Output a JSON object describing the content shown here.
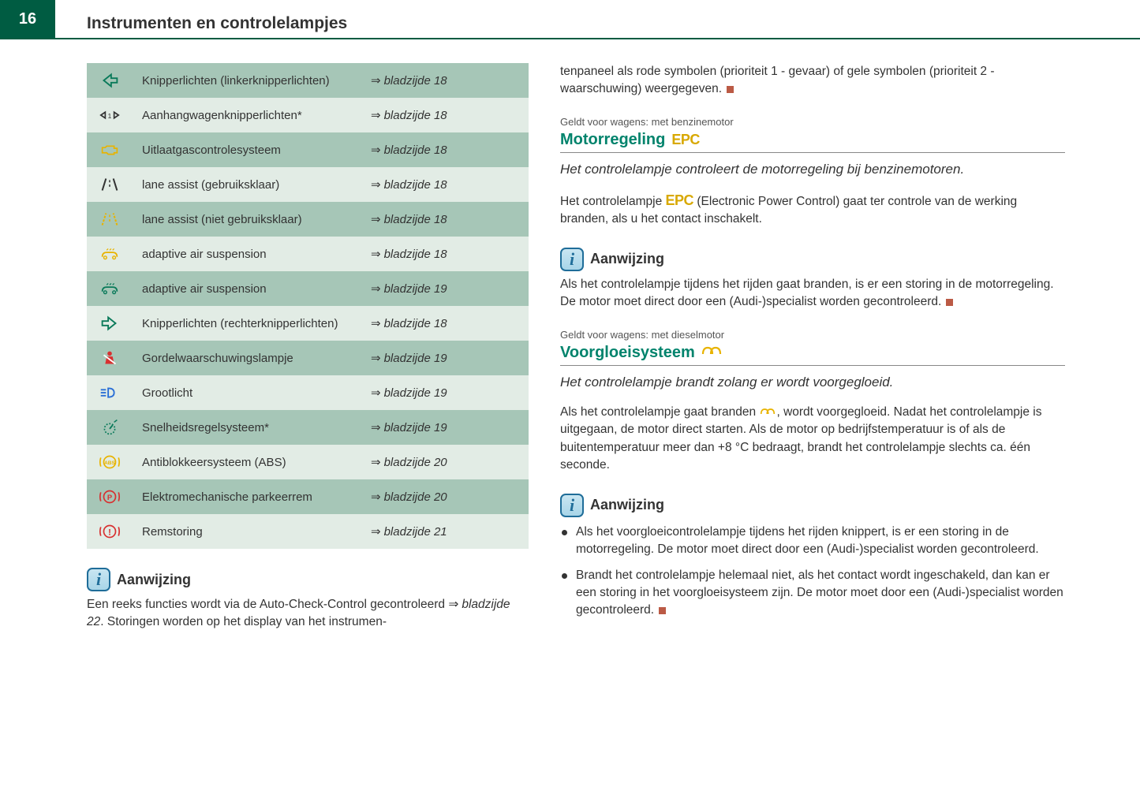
{
  "page": {
    "number": "16",
    "title": "Instrumenten en controlelampjes"
  },
  "colors": {
    "header_green": "#005c42",
    "section_title": "#00836c",
    "row_dark": "#a6c6b7",
    "row_light": "#e2ece5",
    "epc_yellow": "#d8a800",
    "icon_green": "#0a7a5a",
    "icon_yellow": "#e8b300",
    "icon_red": "#d83030",
    "icon_blue": "#2a6fd6",
    "end_square": "#bb5a45"
  },
  "table": {
    "rows": [
      {
        "icon": "turn-left",
        "color": "#0a7a5a",
        "desc": "Knipperlichten (linkerknipperlichten)",
        "ref": "bladzijde 18"
      },
      {
        "icon": "trailer",
        "color": "#333333",
        "desc": "Aanhangwagenknipperlichten*",
        "ref": "bladzijde 18"
      },
      {
        "icon": "engine",
        "color": "#e8b300",
        "desc": "Uitlaatgascontrolesysteem",
        "ref": "bladzijde 18"
      },
      {
        "icon": "lane-on",
        "color": "#333333",
        "desc": "lane assist (gebruiksklaar)",
        "ref": "bladzijde 18"
      },
      {
        "icon": "lane-off",
        "color": "#e8b300",
        "desc": "lane assist (niet gebruiksklaar)",
        "ref": "bladzijde 18"
      },
      {
        "icon": "air-susp-y",
        "color": "#e8b300",
        "desc": "adaptive air suspension",
        "ref": "bladzijde 18"
      },
      {
        "icon": "air-susp-g",
        "color": "#0a7a5a",
        "desc": "adaptive air suspension",
        "ref": "bladzijde 19"
      },
      {
        "icon": "turn-right",
        "color": "#0a7a5a",
        "desc": "Knipperlichten (rechterknipperlichten)",
        "ref": "bladzijde 18"
      },
      {
        "icon": "seatbelt",
        "color": "#d83030",
        "desc": "Gordelwaarschuwingslampje",
        "ref": "bladzijde 19"
      },
      {
        "icon": "highbeam",
        "color": "#2a6fd6",
        "desc": "Grootlicht",
        "ref": "bladzijde 19"
      },
      {
        "icon": "cruise",
        "color": "#0a7a5a",
        "desc": "Snelheidsregelsysteem*",
        "ref": "bladzijde 19"
      },
      {
        "icon": "abs",
        "color": "#e8b300",
        "desc": "Antiblokkeersysteem (ABS)",
        "ref": "bladzijde 20"
      },
      {
        "icon": "parkbrake",
        "color": "#d83030",
        "desc": "Elektromechanische parkeerrem",
        "ref": "bladzijde 20"
      },
      {
        "icon": "brakefault",
        "color": "#d83030",
        "desc": "Remstoring",
        "ref": "bladzijde 21"
      }
    ]
  },
  "left_note": {
    "heading": "Aanwijzing",
    "text_a": "Een reeks functies wordt via de Auto-Check-Control gecontroleerd ",
    "page_ref": "bladzijde 22",
    "text_b": ". Storingen worden op het display van het instrumen-"
  },
  "right": {
    "continuation": "tenpaneel als rode symbolen (prioriteit 1 - gevaar) of gele symbolen (prioriteit 2 - waarschuwing) weergegeven.",
    "section1": {
      "prefix": "Geldt voor wagens: met benzinemotor",
      "title": "Motorregeling",
      "badge": "EPC",
      "subtitle": "Het controlelampje controleert de motorregeling bij benzinemotoren.",
      "para_a": "Het controlelampje ",
      "para_b": " (Electronic Power Control) gaat ter controle van de werking branden, als u het contact inschakelt.",
      "note_heading": "Aanwijzing",
      "note_text": "Als het controlelampje tijdens het rijden gaat branden, is er een storing in de motorregeling. De motor moet direct door een (Audi-)specialist worden gecontroleerd."
    },
    "section2": {
      "prefix": "Geldt voor wagens: met dieselmotor",
      "title": "Voorgloeisysteem",
      "badge": "⥀",
      "subtitle": "Het controlelampje brandt zolang er wordt voorgegloeid.",
      "para_a": "Als het controlelampje gaat branden ",
      "para_b": ", wordt voorgegloeid. Nadat het controlelampje is uitgegaan, de motor direct starten. Als de motor op bedrijfstemperatuur is of als de buitentemperatuur meer dan +8 °C bedraagt, brandt het controlelampje slechts ca. één seconde.",
      "note_heading": "Aanwijzing",
      "bullets": [
        "Als het voorgloeicontrolelampje tijdens het rijden knippert, is er een storing in de motorregeling. De motor moet direct door een (Audi-)specialist worden gecontroleerd.",
        "Brandt het controlelampje helemaal niet, als het contact wordt ingeschakeld, dan kan er een storing in het voorgloeisysteem zijn. De motor moet door een (Audi-)specialist worden gecontroleerd."
      ]
    }
  }
}
